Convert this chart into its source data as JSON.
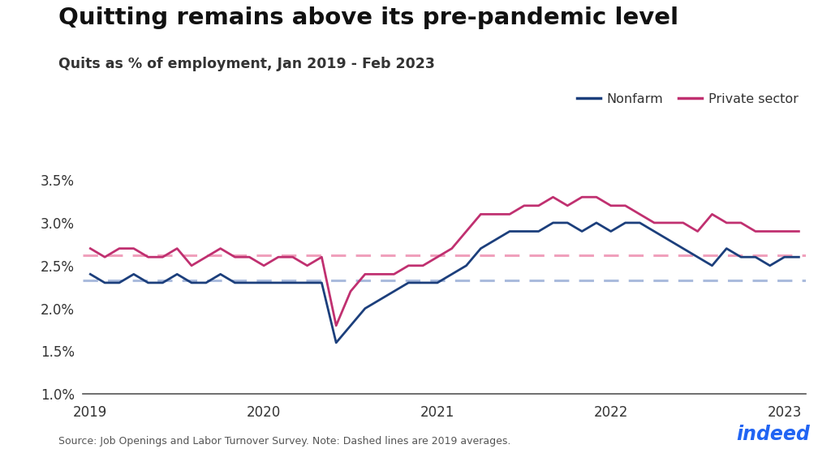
{
  "title": "Quitting remains above its pre-pandemic level",
  "subtitle": "Quits as % of employment, Jan 2019 - Feb 2023",
  "source": "Source: Job Openings and Labor Turnover Survey. Note: Dashed lines are 2019 averages.",
  "nonfarm_color": "#1c3f7c",
  "private_color": "#c03070",
  "nonfarm_avg_color": "#aabbdd",
  "private_avg_color": "#f0a0bc",
  "background_color": "#ffffff",
  "ylim": [
    1.0,
    3.75
  ],
  "yticks": [
    1.0,
    1.5,
    2.0,
    2.5,
    3.0,
    3.5
  ],
  "nonfarm_avg": 2.33,
  "private_avg": 2.62,
  "nonfarm": [
    2.4,
    2.3,
    2.3,
    2.4,
    2.3,
    2.3,
    2.4,
    2.3,
    2.3,
    2.4,
    2.3,
    2.3,
    2.3,
    2.3,
    2.3,
    2.3,
    2.3,
    1.6,
    1.8,
    2.0,
    2.1,
    2.2,
    2.3,
    2.3,
    2.3,
    2.4,
    2.5,
    2.7,
    2.8,
    2.9,
    2.9,
    2.9,
    3.0,
    3.0,
    2.9,
    3.0,
    2.9,
    3.0,
    3.0,
    2.9,
    2.8,
    2.7,
    2.6,
    2.5,
    2.7,
    2.6,
    2.6,
    2.5,
    2.6,
    2.6
  ],
  "private": [
    2.7,
    2.6,
    2.7,
    2.7,
    2.6,
    2.6,
    2.7,
    2.5,
    2.6,
    2.7,
    2.6,
    2.6,
    2.5,
    2.6,
    2.6,
    2.5,
    2.6,
    1.8,
    2.2,
    2.4,
    2.4,
    2.4,
    2.5,
    2.5,
    2.6,
    2.7,
    2.9,
    3.1,
    3.1,
    3.1,
    3.2,
    3.2,
    3.3,
    3.2,
    3.3,
    3.3,
    3.2,
    3.2,
    3.1,
    3.0,
    3.0,
    3.0,
    2.9,
    3.1,
    3.0,
    3.0,
    2.9,
    2.9,
    2.9,
    2.9
  ],
  "x_tick_positions": [
    0,
    12,
    24,
    36,
    48
  ],
  "x_tick_labels": [
    "2019",
    "2020",
    "2021",
    "2022",
    "2023"
  ]
}
